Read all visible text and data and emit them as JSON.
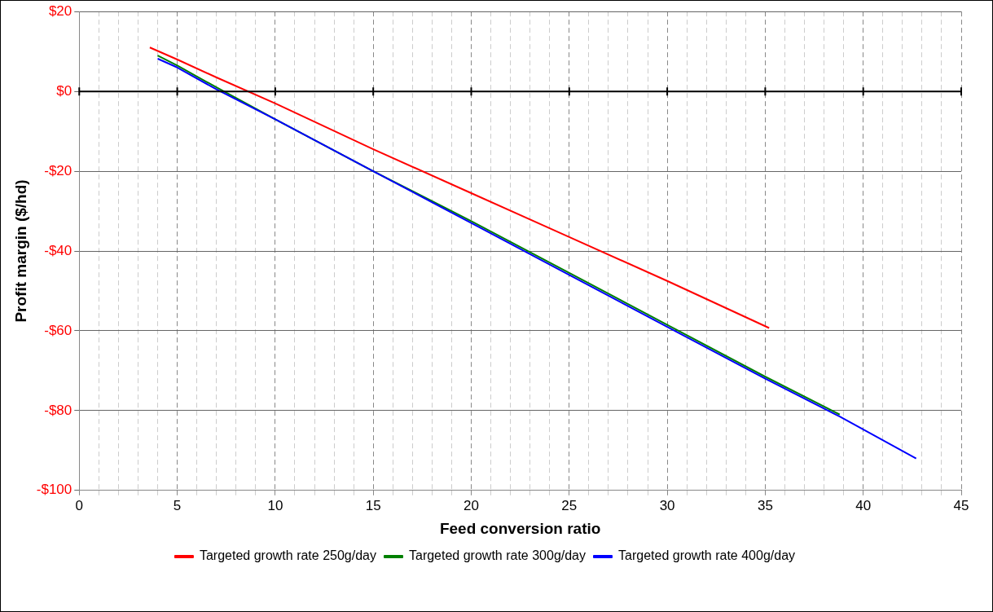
{
  "chart_data": {
    "type": "line",
    "xlabel": "Feed conversion ratio",
    "ylabel": "Profit margin ($/hd)",
    "xlim": [
      0,
      45
    ],
    "xticks": [
      0,
      {
        "value": 1,
        "label": null
      },
      {
        "value": 2,
        "label": null
      },
      {
        "value": 3,
        "label": null
      },
      {
        "value": 4,
        "label": null
      },
      5,
      {
        "value": 6,
        "label": null
      },
      {
        "value": 7,
        "label": null
      },
      {
        "value": 8,
        "label": null
      },
      {
        "value": 9,
        "label": null
      },
      10,
      {
        "value": 11,
        "label": null
      },
      {
        "value": 12,
        "label": null
      },
      {
        "value": 13,
        "label": null
      },
      {
        "value": 14,
        "label": null
      },
      15,
      {
        "value": 16,
        "label": null
      },
      {
        "value": 17,
        "label": null
      },
      {
        "value": 18,
        "label": null
      },
      {
        "value": 19,
        "label": null
      },
      20,
      {
        "value": 21,
        "label": null
      },
      {
        "value": 22,
        "label": null
      },
      {
        "value": 23,
        "label": null
      },
      {
        "value": 24,
        "label": null
      },
      25,
      {
        "value": 26,
        "label": null
      },
      {
        "value": 27,
        "label": null
      },
      {
        "value": 28,
        "label": null
      },
      {
        "value": 29,
        "label": null
      },
      30,
      {
        "value": 31,
        "label": null
      },
      {
        "value": 32,
        "label": null
      },
      {
        "value": 33,
        "label": null
      },
      {
        "value": 34,
        "label": null
      },
      35,
      {
        "value": 36,
        "label": null
      },
      {
        "value": 37,
        "label": null
      },
      {
        "value": 38,
        "label": null
      },
      {
        "value": 39,
        "label": null
      },
      40,
      {
        "value": 41,
        "label": null
      },
      {
        "value": 42,
        "label": null
      },
      {
        "value": 43,
        "label": null
      },
      {
        "value": 44,
        "label": null
      },
      45
    ],
    "ylim": [
      -100,
      20
    ],
    "yticks": [
      {
        "value": -100,
        "label": "-$100"
      },
      {
        "value": -80,
        "label": "-$80"
      },
      {
        "value": -60,
        "label": "-$60"
      },
      {
        "value": -40,
        "label": "-$40"
      },
      {
        "value": -20,
        "label": "-$20"
      },
      {
        "value": 0,
        "label": "$0"
      },
      {
        "value": 20,
        "label": "$20"
      }
    ],
    "grid": true,
    "legend": "bottom",
    "marker": "none",
    "line_style": "solid",
    "ref_lines": [
      {
        "axis": "y",
        "value": 0,
        "color": "#000000"
      }
    ],
    "series": [
      {
        "name": "Targeted growth rate 250g/day",
        "color": "#ff0000",
        "x": [
          3.6,
          5,
          7,
          10,
          15,
          20,
          25,
          30,
          35.2
        ],
        "values": [
          11,
          8,
          3.5,
          -3,
          -14.5,
          -25.5,
          -36.5,
          -47.5,
          -59.3
        ]
      },
      {
        "name": "Targeted growth rate 300g/day",
        "color": "#008000",
        "x": [
          4,
          5,
          7,
          10,
          15,
          20,
          25,
          30,
          35,
          38.8
        ],
        "values": [
          9,
          6.5,
          1,
          -7,
          -20,
          -32.5,
          -45.5,
          -58.5,
          -71.5,
          -81
        ]
      },
      {
        "name": "Targeted growth rate 400g/day",
        "color": "#0000ff",
        "x": [
          4,
          5,
          7,
          10,
          15,
          20,
          25,
          30,
          35,
          38.8,
          42.7
        ],
        "values": [
          8.2,
          6,
          0.5,
          -7,
          -20,
          -33,
          -46,
          -59,
          -72,
          -81.5,
          -92
        ]
      }
    ]
  }
}
